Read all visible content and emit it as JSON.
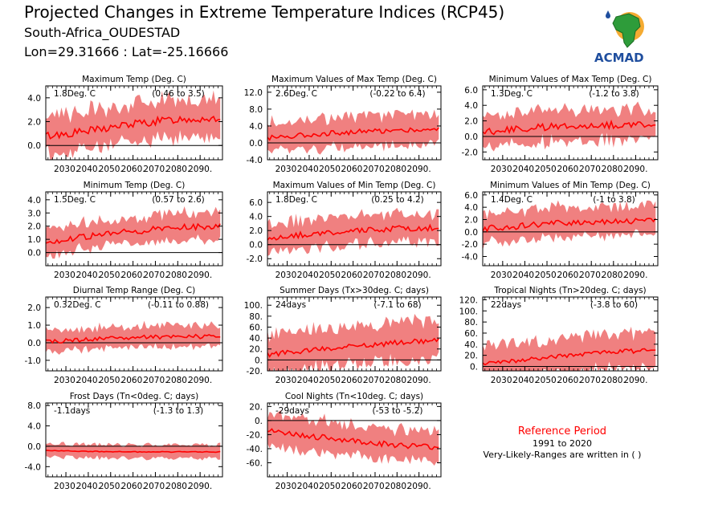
{
  "header": {
    "title": "Projected Changes in Extreme Temperature Indices (RCP45)",
    "location": "South-Africa_OUDESTAD",
    "coords": "Lon=29.31666 : Lat=-25.16666"
  },
  "logo": {
    "text": "ACMAD"
  },
  "reference": {
    "title": "Reference Period",
    "period": "1991 to 2020",
    "note": "Very-Likely-Ranges are written in ( )"
  },
  "colors": {
    "band": "#f08080",
    "line": "#ff0000",
    "zero": "#000000"
  },
  "chart_data": [
    {
      "type": "area",
      "title": "Maximum Temp (Deg. C)",
      "change": "1.8Deg. C",
      "range": "(0.46 to 3.5)",
      "ylim": [
        -1.2,
        5.0
      ],
      "yticks": [
        0.0,
        2.0,
        4.0
      ],
      "ytick_labels": [
        "0.0",
        "2.0",
        "4.0"
      ],
      "xlim": [
        2021,
        2100
      ],
      "xticks": [
        2030,
        2040,
        2050,
        2060,
        2070,
        2080,
        2090
      ],
      "xtick_labels": [
        "2030.",
        "2040.",
        "2050.",
        "2060.",
        "2070.",
        "2080.",
        "2090."
      ],
      "median": [
        {
          "x": 2021,
          "y": 0.8
        },
        {
          "x": 2040,
          "y": 1.2
        },
        {
          "x": 2060,
          "y": 1.8
        },
        {
          "x": 2080,
          "y": 2.2
        },
        {
          "x": 2099,
          "y": 2.3
        }
      ],
      "band_width": 1.6,
      "noise": 0.35
    },
    {
      "type": "area",
      "title": "Maximum Values of Max Temp (Deg. C)",
      "change": "2.6Deg. C",
      "range": "(-0.22 to 6.4)",
      "ylim": [
        -4.0,
        13.5
      ],
      "yticks": [
        -4.0,
        0.0,
        4.0,
        8.0,
        12.0
      ],
      "ytick_labels": [
        "-4.0",
        "0.0",
        "4.0",
        "8.0",
        "12.0"
      ],
      "xlim": [
        2021,
        2100
      ],
      "xticks": [
        2030,
        2040,
        2050,
        2060,
        2070,
        2080,
        2090
      ],
      "xtick_labels": [
        "2030.",
        "2040.",
        "2050.",
        "2060.",
        "2070.",
        "2080.",
        "2090."
      ],
      "median": [
        {
          "x": 2021,
          "y": 1.2
        },
        {
          "x": 2040,
          "y": 2.0
        },
        {
          "x": 2060,
          "y": 2.6
        },
        {
          "x": 2080,
          "y": 3.0
        },
        {
          "x": 2099,
          "y": 3.2
        }
      ],
      "band_width": 3.5,
      "noise": 0.6
    },
    {
      "type": "area",
      "title": "Minimum Values of Max Temp (Deg. C)",
      "change": "1.3Deg. C",
      "range": "(-1.2 to 3.8)",
      "ylim": [
        -3.0,
        6.5
      ],
      "yticks": [
        -2.0,
        0.0,
        2.0,
        4.0,
        6.0
      ],
      "ytick_labels": [
        "-2.0",
        "0.0",
        "2.0",
        "4.0",
        "6.0"
      ],
      "xlim": [
        2021,
        2100
      ],
      "xticks": [
        2030,
        2040,
        2050,
        2060,
        2070,
        2080,
        2090
      ],
      "xtick_labels": [
        "2030.",
        "2040.",
        "2050.",
        "2060.",
        "2070.",
        "2080.",
        "2090."
      ],
      "median": [
        {
          "x": 2021,
          "y": 0.6
        },
        {
          "x": 2040,
          "y": 1.0
        },
        {
          "x": 2060,
          "y": 1.4
        },
        {
          "x": 2080,
          "y": 1.5
        },
        {
          "x": 2099,
          "y": 1.6
        }
      ],
      "band_width": 2.0,
      "noise": 0.45
    },
    {
      "type": "area",
      "title": "Minimum Temp (Deg. C)",
      "change": "1.5Deg. C",
      "range": "(0.57 to 2.6)",
      "ylim": [
        -1.0,
        4.6
      ],
      "yticks": [
        0.0,
        1.0,
        2.0,
        3.0,
        4.0
      ],
      "ytick_labels": [
        "0.0",
        "1.0",
        "2.0",
        "3.0",
        "4.0"
      ],
      "xlim": [
        2021,
        2100
      ],
      "xticks": [
        2030,
        2040,
        2050,
        2060,
        2070,
        2080,
        2090
      ],
      "xtick_labels": [
        "2030.",
        "2040.",
        "2050.",
        "2060.",
        "2070.",
        "2080.",
        "2090."
      ],
      "median": [
        {
          "x": 2021,
          "y": 0.8
        },
        {
          "x": 2040,
          "y": 1.2
        },
        {
          "x": 2060,
          "y": 1.6
        },
        {
          "x": 2080,
          "y": 1.9
        },
        {
          "x": 2099,
          "y": 2.0
        }
      ],
      "band_width": 1.0,
      "noise": 0.25
    },
    {
      "type": "area",
      "title": "Maximum Values of Min Temp (Deg. C)",
      "change": "1.8Deg. C",
      "range": "(0.25 to 4.2)",
      "ylim": [
        -3.0,
        7.5
      ],
      "yticks": [
        -2.0,
        0.0,
        2.0,
        4.0,
        6.0
      ],
      "ytick_labels": [
        "-2.0",
        "0.0",
        "2.0",
        "4.0",
        "6.0"
      ],
      "xlim": [
        2021,
        2100
      ],
      "xticks": [
        2030,
        2040,
        2050,
        2060,
        2070,
        2080,
        2090
      ],
      "xtick_labels": [
        "2030.",
        "2040.",
        "2050.",
        "2060.",
        "2070.",
        "2080.",
        "2090."
      ],
      "median": [
        {
          "x": 2021,
          "y": 0.9
        },
        {
          "x": 2040,
          "y": 1.5
        },
        {
          "x": 2060,
          "y": 1.9
        },
        {
          "x": 2080,
          "y": 2.3
        },
        {
          "x": 2099,
          "y": 2.4
        }
      ],
      "band_width": 2.0,
      "noise": 0.4
    },
    {
      "type": "area",
      "title": "Minimum Values of Min Temp (Deg. C)",
      "change": "1.4Deg. C",
      "range": "(-1 to 3.8)",
      "ylim": [
        -5.5,
        6.5
      ],
      "yticks": [
        -4.0,
        -2.0,
        0.0,
        2.0,
        4.0,
        6.0
      ],
      "ytick_labels": [
        "-4.0",
        "-2.0",
        "0.0",
        "2.0",
        "4.0",
        "6.0"
      ],
      "xlim": [
        2021,
        2100
      ],
      "xticks": [
        2030,
        2040,
        2050,
        2060,
        2070,
        2080,
        2090
      ],
      "xtick_labels": [
        "2030.",
        "2040.",
        "2050.",
        "2060.",
        "2070.",
        "2080.",
        "2090."
      ],
      "median": [
        {
          "x": 2021,
          "y": 0.5
        },
        {
          "x": 2040,
          "y": 1.0
        },
        {
          "x": 2060,
          "y": 1.5
        },
        {
          "x": 2080,
          "y": 1.8
        },
        {
          "x": 2099,
          "y": 1.8
        }
      ],
      "band_width": 2.4,
      "noise": 0.5
    },
    {
      "type": "area",
      "title": "Diurnal Temp Range (Deg. C)",
      "change": "0.32Deg. C",
      "range": "(-0.11 to 0.88)",
      "ylim": [
        -1.6,
        2.6
      ],
      "yticks": [
        -1.0,
        0.0,
        1.0,
        2.0
      ],
      "ytick_labels": [
        "-1.0",
        "0.0",
        "1.0",
        "2.0"
      ],
      "xlim": [
        2021,
        2100
      ],
      "xticks": [
        2030,
        2040,
        2050,
        2060,
        2070,
        2080,
        2090
      ],
      "xtick_labels": [
        "2030.",
        "2040.",
        "2050.",
        "2060.",
        "2070.",
        "2080.",
        "2090."
      ],
      "median": [
        {
          "x": 2021,
          "y": 0.05
        },
        {
          "x": 2040,
          "y": 0.2
        },
        {
          "x": 2060,
          "y": 0.3
        },
        {
          "x": 2080,
          "y": 0.35
        },
        {
          "x": 2099,
          "y": 0.35
        }
      ],
      "band_width": 0.6,
      "noise": 0.12
    },
    {
      "type": "area",
      "title": "Summer Days (Tx>30deg. C; days)",
      "change": "24days",
      "range": "(-7.1 to 68)",
      "ylim": [
        -20,
        115
      ],
      "yticks": [
        -20,
        0,
        20,
        40,
        60,
        80,
        100
      ],
      "ytick_labels": [
        "-20.",
        "0.",
        "20.",
        "40.",
        "60.",
        "80.",
        "100."
      ],
      "xlim": [
        2021,
        2100
      ],
      "xticks": [
        2030,
        2040,
        2050,
        2060,
        2070,
        2080,
        2090
      ],
      "xtick_labels": [
        "2030.",
        "2040.",
        "2050.",
        "2060.",
        "2070.",
        "2080.",
        "2090."
      ],
      "median": [
        {
          "x": 2021,
          "y": 10
        },
        {
          "x": 2040,
          "y": 18
        },
        {
          "x": 2060,
          "y": 25
        },
        {
          "x": 2080,
          "y": 32
        },
        {
          "x": 2099,
          "y": 35
        }
      ],
      "band_width": 35,
      "noise": 5
    },
    {
      "type": "area",
      "title": "Tropical Nights (Tn>20deg. C; days)",
      "change": "22days",
      "range": "(-3.8 to 60)",
      "ylim": [
        -8,
        125
      ],
      "yticks": [
        0,
        20,
        40,
        60,
        80,
        100,
        120
      ],
      "ytick_labels": [
        "0.",
        "20.",
        "40.",
        "60.",
        "80.",
        "100.",
        "120."
      ],
      "xlim": [
        2021,
        2100
      ],
      "xticks": [
        2030,
        2040,
        2050,
        2060,
        2070,
        2080,
        2090
      ],
      "xtick_labels": [
        "2030.",
        "2040.",
        "2050.",
        "2060.",
        "2070.",
        "2080.",
        "2090."
      ],
      "median": [
        {
          "x": 2021,
          "y": 5
        },
        {
          "x": 2040,
          "y": 12
        },
        {
          "x": 2060,
          "y": 20
        },
        {
          "x": 2080,
          "y": 26
        },
        {
          "x": 2099,
          "y": 30
        }
      ],
      "band_width": 30,
      "noise": 4
    },
    {
      "type": "area",
      "title": "Frost Days (Tn<0deg. C; days)",
      "change": "-1.1days",
      "range": "(-1.3 to 1.3)",
      "ylim": [
        -6.0,
        8.5
      ],
      "yticks": [
        -4.0,
        0.0,
        4.0,
        8.0
      ],
      "ytick_labels": [
        "-4.0",
        "0.0",
        "4.0",
        "8.0"
      ],
      "xlim": [
        2021,
        2100
      ],
      "xticks": [
        2030,
        2040,
        2050,
        2060,
        2070,
        2080,
        2090
      ],
      "xtick_labels": [
        "2030.",
        "2040.",
        "2050.",
        "2060.",
        "2070.",
        "2080.",
        "2090."
      ],
      "median": [
        {
          "x": 2021,
          "y": -0.8
        },
        {
          "x": 2040,
          "y": -1.0
        },
        {
          "x": 2060,
          "y": -1.1
        },
        {
          "x": 2080,
          "y": -1.1
        },
        {
          "x": 2099,
          "y": -1.1
        }
      ],
      "band_width": 1.3,
      "noise": 0.08
    },
    {
      "type": "area",
      "title": "Cool Nights (Tn<10deg. C; days)",
      "change": "-29days",
      "range": "(-53 to -5.2)",
      "ylim": [
        -80,
        25
      ],
      "yticks": [
        -60,
        -40,
        -20,
        0,
        20
      ],
      "ytick_labels": [
        "-60.",
        "-40.",
        "-20.",
        "0.",
        "20."
      ],
      "xlim": [
        2021,
        2100
      ],
      "xticks": [
        2030,
        2040,
        2050,
        2060,
        2070,
        2080,
        2090
      ],
      "xtick_labels": [
        "2030.",
        "2040.",
        "2050.",
        "2060.",
        "2070.",
        "2080.",
        "2090."
      ],
      "median": [
        {
          "x": 2021,
          "y": -15
        },
        {
          "x": 2040,
          "y": -22
        },
        {
          "x": 2060,
          "y": -29
        },
        {
          "x": 2080,
          "y": -35
        },
        {
          "x": 2099,
          "y": -38
        }
      ],
      "band_width": 22,
      "noise": 4
    }
  ]
}
